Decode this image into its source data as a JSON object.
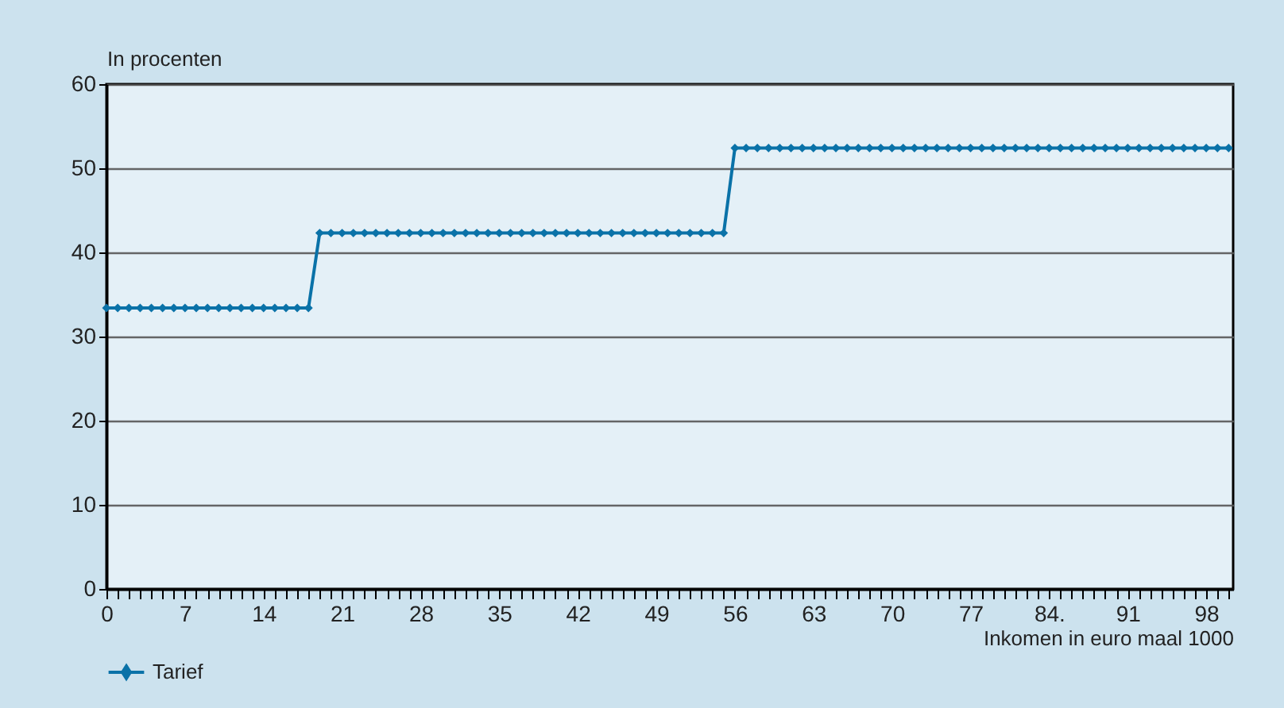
{
  "chart_data": {
    "type": "line",
    "xlabel": "Inkomen in euro maal 1000",
    "ylabel": "In procenten",
    "x": [
      0,
      1,
      2,
      3,
      4,
      5,
      6,
      7,
      8,
      9,
      10,
      11,
      12,
      13,
      14,
      15,
      16,
      17,
      18,
      19,
      20,
      21,
      22,
      23,
      24,
      25,
      26,
      27,
      28,
      29,
      30,
      31,
      32,
      33,
      34,
      35,
      36,
      37,
      38,
      39,
      40,
      41,
      42,
      43,
      44,
      45,
      46,
      47,
      48,
      49,
      50,
      51,
      52,
      53,
      54,
      55,
      56,
      57,
      58,
      59,
      60,
      61,
      62,
      63,
      64,
      65,
      66,
      67,
      68,
      69,
      70,
      71,
      72,
      73,
      74,
      75,
      76,
      77,
      78,
      79,
      80,
      81,
      82,
      83,
      84,
      85,
      86,
      87,
      88,
      89,
      90,
      91,
      92,
      93,
      94,
      95,
      96,
      97,
      98,
      99,
      100
    ],
    "series": [
      {
        "name": "Tarief",
        "color": "#0a72a8",
        "values": [
          33.4,
          33.4,
          33.4,
          33.4,
          33.4,
          33.4,
          33.4,
          33.4,
          33.4,
          33.4,
          33.4,
          33.4,
          33.4,
          33.4,
          33.4,
          33.4,
          33.4,
          33.4,
          33.4,
          42.3,
          42.3,
          42.3,
          42.3,
          42.3,
          42.3,
          42.3,
          42.3,
          42.3,
          42.3,
          42.3,
          42.3,
          42.3,
          42.3,
          42.3,
          42.3,
          42.3,
          42.3,
          42.3,
          42.3,
          42.3,
          42.3,
          42.3,
          42.3,
          42.3,
          42.3,
          42.3,
          42.3,
          42.3,
          42.3,
          42.3,
          42.3,
          42.3,
          42.3,
          42.3,
          42.3,
          42.3,
          52.4,
          52.4,
          52.4,
          52.4,
          52.4,
          52.4,
          52.4,
          52.4,
          52.4,
          52.4,
          52.4,
          52.4,
          52.4,
          52.4,
          52.4,
          52.4,
          52.4,
          52.4,
          52.4,
          52.4,
          52.4,
          52.4,
          52.4,
          52.4,
          52.4,
          52.4,
          52.4,
          52.4,
          52.4,
          52.4,
          52.4,
          52.4,
          52.4,
          52.4,
          52.4,
          52.4,
          52.4,
          52.4,
          52.4,
          52.4,
          52.4,
          52.4,
          52.4,
          52.4,
          52.4
        ]
      }
    ],
    "xlim": [
      0,
      100.4
    ],
    "xticks": [
      0,
      {
        "value": 1,
        "label": null
      },
      {
        "value": 2,
        "label": null
      },
      {
        "value": 3,
        "label": null
      },
      {
        "value": 4,
        "label": null
      },
      {
        "value": 5,
        "label": null
      },
      {
        "value": 6,
        "label": null
      },
      7,
      {
        "value": 8,
        "label": null
      },
      {
        "value": 9,
        "label": null
      },
      {
        "value": 10,
        "label": null
      },
      {
        "value": 11,
        "label": null
      },
      {
        "value": 12,
        "label": null
      },
      {
        "value": 13,
        "label": null
      },
      14,
      {
        "value": 15,
        "label": null
      },
      {
        "value": 16,
        "label": null
      },
      {
        "value": 17,
        "label": null
      },
      {
        "value": 18,
        "label": null
      },
      {
        "value": 19,
        "label": null
      },
      {
        "value": 20,
        "label": null
      },
      21,
      {
        "value": 22,
        "label": null
      },
      {
        "value": 23,
        "label": null
      },
      {
        "value": 24,
        "label": null
      },
      {
        "value": 25,
        "label": null
      },
      {
        "value": 26,
        "label": null
      },
      {
        "value": 27,
        "label": null
      },
      28,
      {
        "value": 29,
        "label": null
      },
      {
        "value": 30,
        "label": null
      },
      {
        "value": 31,
        "label": null
      },
      {
        "value": 32,
        "label": null
      },
      {
        "value": 33,
        "label": null
      },
      {
        "value": 34,
        "label": null
      },
      35,
      {
        "value": 36,
        "label": null
      },
      {
        "value": 37,
        "label": null
      },
      {
        "value": 38,
        "label": null
      },
      {
        "value": 39,
        "label": null
      },
      {
        "value": 40,
        "label": null
      },
      {
        "value": 41,
        "label": null
      },
      42,
      {
        "value": 43,
        "label": null
      },
      {
        "value": 44,
        "label": null
      },
      {
        "value": 45,
        "label": null
      },
      {
        "value": 46,
        "label": null
      },
      {
        "value": 47,
        "label": null
      },
      {
        "value": 48,
        "label": null
      },
      49,
      {
        "value": 50,
        "label": null
      },
      {
        "value": 51,
        "label": null
      },
      {
        "value": 52,
        "label": null
      },
      {
        "value": 53,
        "label": null
      },
      {
        "value": 54,
        "label": null
      },
      {
        "value": 55,
        "label": null
      },
      56,
      {
        "value": 57,
        "label": null
      },
      {
        "value": 58,
        "label": null
      },
      {
        "value": 59,
        "label": null
      },
      {
        "value": 60,
        "label": null
      },
      {
        "value": 61,
        "label": null
      },
      {
        "value": 62,
        "label": null
      },
      63,
      {
        "value": 64,
        "label": null
      },
      {
        "value": 65,
        "label": null
      },
      {
        "value": 66,
        "label": null
      },
      {
        "value": 67,
        "label": null
      },
      {
        "value": 68,
        "label": null
      },
      {
        "value": 69,
        "label": null
      },
      70,
      {
        "value": 71,
        "label": null
      },
      {
        "value": 72,
        "label": null
      },
      {
        "value": 73,
        "label": null
      },
      {
        "value": 74,
        "label": null
      },
      {
        "value": 75,
        "label": null
      },
      {
        "value": 76,
        "label": null
      },
      77,
      {
        "value": 78,
        "label": null
      },
      {
        "value": 79,
        "label": null
      },
      {
        "value": 80,
        "label": null
      },
      {
        "value": 81,
        "label": null
      },
      {
        "value": 82,
        "label": null
      },
      {
        "value": 83,
        "label": null
      },
      {
        "value": 84,
        "label": "84."
      },
      {
        "value": 85,
        "label": null
      },
      {
        "value": 86,
        "label": null
      },
      {
        "value": 87,
        "label": null
      },
      {
        "value": 88,
        "label": null
      },
      {
        "value": 89,
        "label": null
      },
      {
        "value": 90,
        "label": null
      },
      91,
      {
        "value": 92,
        "label": null
      },
      {
        "value": 93,
        "label": null
      },
      {
        "value": 94,
        "label": null
      },
      {
        "value": 95,
        "label": null
      },
      {
        "value": 96,
        "label": null
      },
      {
        "value": 97,
        "label": null
      },
      98,
      {
        "value": 99,
        "label": null
      },
      {
        "value": 100,
        "label": null
      }
    ],
    "ylim": [
      0,
      60
    ],
    "yticks": [
      0,
      10,
      20,
      30,
      40,
      50,
      60
    ],
    "grid": "y",
    "legend": "bottom",
    "marker": "diamond",
    "line_style": "solid"
  }
}
